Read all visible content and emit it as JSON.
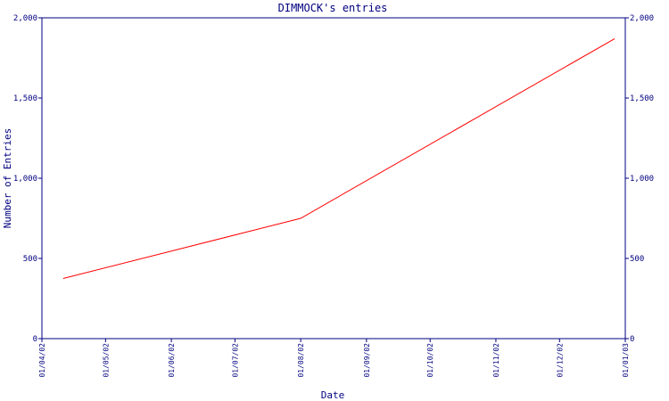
{
  "chart_data": {
    "type": "line",
    "title": "DIMMOCK's entries",
    "xlabel": "Date",
    "ylabel": "Number of Entries",
    "x_ticks": [
      "01/04/02",
      "01/05/02",
      "01/06/02",
      "01/07/02",
      "01/08/02",
      "01/09/02",
      "01/10/02",
      "01/11/02",
      "01/12/02",
      "01/01/03"
    ],
    "y_ticks": [
      "0",
      "500",
      "1,000",
      "1,500",
      "2,000"
    ],
    "ylim": [
      0,
      2000
    ],
    "xlim": [
      "2002-04-01",
      "2003-01-01"
    ],
    "grid": false,
    "series": [
      {
        "color": "#ff0000",
        "points": [
          {
            "x": "2002-04-11",
            "y": 375
          },
          {
            "x": "2002-08-01",
            "y": 750
          },
          {
            "x": "2002-12-27",
            "y": 1870
          }
        ]
      }
    ],
    "axis_color": "#000080"
  }
}
